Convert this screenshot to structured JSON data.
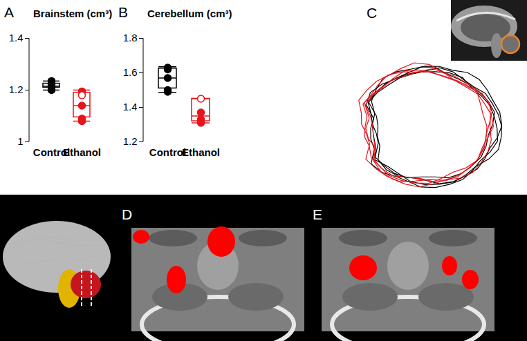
{
  "chart_data": [
    {
      "type": "box",
      "panel_label": "A",
      "title": "Brainstem (cm³)",
      "categories": [
        "Control",
        "Ethanol"
      ],
      "colors": [
        "#000000",
        "#e8141b"
      ],
      "ylim": [
        1,
        1.4
      ],
      "yticks": [
        1,
        1.2,
        1.4
      ],
      "boxes": [
        {
          "whisker_low": 1.2,
          "q1": 1.21,
          "median": 1.215,
          "q3": 1.225,
          "whisker_high": 1.235
        },
        {
          "whisker_low": 1.08,
          "q1": 1.095,
          "median": 1.14,
          "q3": 1.19,
          "whisker_high": 1.2
        }
      ],
      "points": [
        [
          1.235,
          1.225,
          1.215,
          1.21,
          1.2
        ],
        [
          1.195,
          1.18,
          1.14,
          1.09,
          1.08
        ]
      ],
      "point_markers": [
        [
          "filled",
          "filled",
          "filled",
          "filled",
          "filled"
        ],
        [
          "filled",
          "open",
          "filled",
          "filled",
          "filled"
        ]
      ]
    },
    {
      "type": "box",
      "panel_label": "B",
      "title": "Cerebellum (cm³)",
      "categories": [
        "Control",
        "Ethanol"
      ],
      "colors": [
        "#000000",
        "#e8141b"
      ],
      "ylim": [
        1.2,
        1.8
      ],
      "yticks": [
        1.2,
        1.4,
        1.6,
        1.8
      ],
      "boxes": [
        {
          "whisker_low": 1.485,
          "q1": 1.51,
          "median": 1.57,
          "q3": 1.625,
          "whisker_high": 1.635
        },
        {
          "whisker_low": 1.31,
          "q1": 1.32,
          "median": 1.35,
          "q3": 1.45,
          "whisker_high": 1.45
        }
      ],
      "points": [
        [
          1.63,
          1.62,
          1.57,
          1.5,
          1.49
        ],
        [
          1.45,
          1.37,
          1.33,
          1.32,
          1.31
        ]
      ],
      "point_markers": [
        [
          "filled",
          "filled",
          "filled",
          "filled",
          "filled"
        ],
        [
          "open",
          "filled",
          "filled",
          "filled",
          "filled"
        ]
      ]
    }
  ],
  "diagram": {
    "panels": [
      {
        "label": "C"
      },
      {
        "label": "D"
      },
      {
        "label": "E"
      }
    ]
  }
}
